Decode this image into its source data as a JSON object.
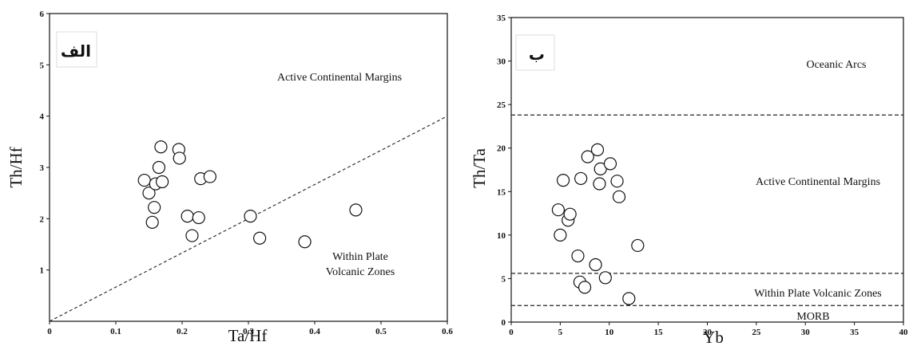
{
  "chart_data": [
    {
      "type": "scatter",
      "panel_label": "الف",
      "xlabel": "Ta/Hf",
      "ylabel": "Th/Hf",
      "xlim": [
        0,
        0.6
      ],
      "ylim": [
        0,
        6
      ],
      "xticks": [
        "0",
        "0.1",
        "0.2",
        "0.3",
        "0.4",
        "0.5",
        "0.6"
      ],
      "yticks": [
        "1",
        "2",
        "3",
        "4",
        "5",
        "6"
      ],
      "regions": [
        "Active Continental Margins",
        "Within Plate",
        "Volcanic Zones"
      ],
      "boundary": {
        "style": "dashed",
        "from": [
          0,
          0
        ],
        "to": [
          0.6,
          4.0
        ]
      },
      "points": [
        {
          "x": 0.143,
          "y": 2.75
        },
        {
          "x": 0.15,
          "y": 2.5
        },
        {
          "x": 0.155,
          "y": 1.93
        },
        {
          "x": 0.158,
          "y": 2.22
        },
        {
          "x": 0.16,
          "y": 2.68
        },
        {
          "x": 0.165,
          "y": 3.0
        },
        {
          "x": 0.168,
          "y": 3.4
        },
        {
          "x": 0.17,
          "y": 2.72
        },
        {
          "x": 0.195,
          "y": 3.35
        },
        {
          "x": 0.196,
          "y": 3.18
        },
        {
          "x": 0.208,
          "y": 2.05
        },
        {
          "x": 0.215,
          "y": 1.67
        },
        {
          "x": 0.225,
          "y": 2.02
        },
        {
          "x": 0.228,
          "y": 2.78
        },
        {
          "x": 0.242,
          "y": 2.82
        },
        {
          "x": 0.303,
          "y": 2.05
        },
        {
          "x": 0.317,
          "y": 1.62
        },
        {
          "x": 0.385,
          "y": 1.55
        },
        {
          "x": 0.462,
          "y": 2.17
        }
      ]
    },
    {
      "type": "scatter",
      "panel_label": "ب",
      "xlabel": "Yb",
      "ylabel": "Th/Ta",
      "xlim": [
        0,
        40
      ],
      "ylim": [
        0,
        35
      ],
      "xticks": [
        "0",
        "5",
        "10",
        "15",
        "20",
        "25",
        "30",
        "35",
        "40"
      ],
      "yticks": [
        "0",
        "5",
        "10",
        "15",
        "20",
        "25",
        "30",
        "35"
      ],
      "regions": [
        "Oceanic Arcs",
        "Active Continental Margins",
        "Within Plate Volcanic Zones",
        "MORB"
      ],
      "boundaries": [
        {
          "style": "dashed",
          "y": 23.8
        },
        {
          "style": "dashed",
          "y": 5.6
        },
        {
          "style": "dashed",
          "y": 1.9
        }
      ],
      "points": [
        {
          "x": 4.8,
          "y": 12.9
        },
        {
          "x": 5.0,
          "y": 10.0
        },
        {
          "x": 5.3,
          "y": 16.3
        },
        {
          "x": 5.8,
          "y": 11.7
        },
        {
          "x": 6.0,
          "y": 12.4
        },
        {
          "x": 6.8,
          "y": 7.6
        },
        {
          "x": 7.0,
          "y": 4.6
        },
        {
          "x": 7.1,
          "y": 16.5
        },
        {
          "x": 7.5,
          "y": 4.0
        },
        {
          "x": 7.8,
          "y": 19.0
        },
        {
          "x": 8.6,
          "y": 6.6
        },
        {
          "x": 8.8,
          "y": 19.8
        },
        {
          "x": 9.0,
          "y": 15.9
        },
        {
          "x": 9.1,
          "y": 17.6
        },
        {
          "x": 9.6,
          "y": 5.1
        },
        {
          "x": 10.1,
          "y": 18.2
        },
        {
          "x": 10.8,
          "y": 16.2
        },
        {
          "x": 11.0,
          "y": 14.4
        },
        {
          "x": 12.0,
          "y": 2.7
        },
        {
          "x": 12.9,
          "y": 8.8
        }
      ]
    }
  ]
}
